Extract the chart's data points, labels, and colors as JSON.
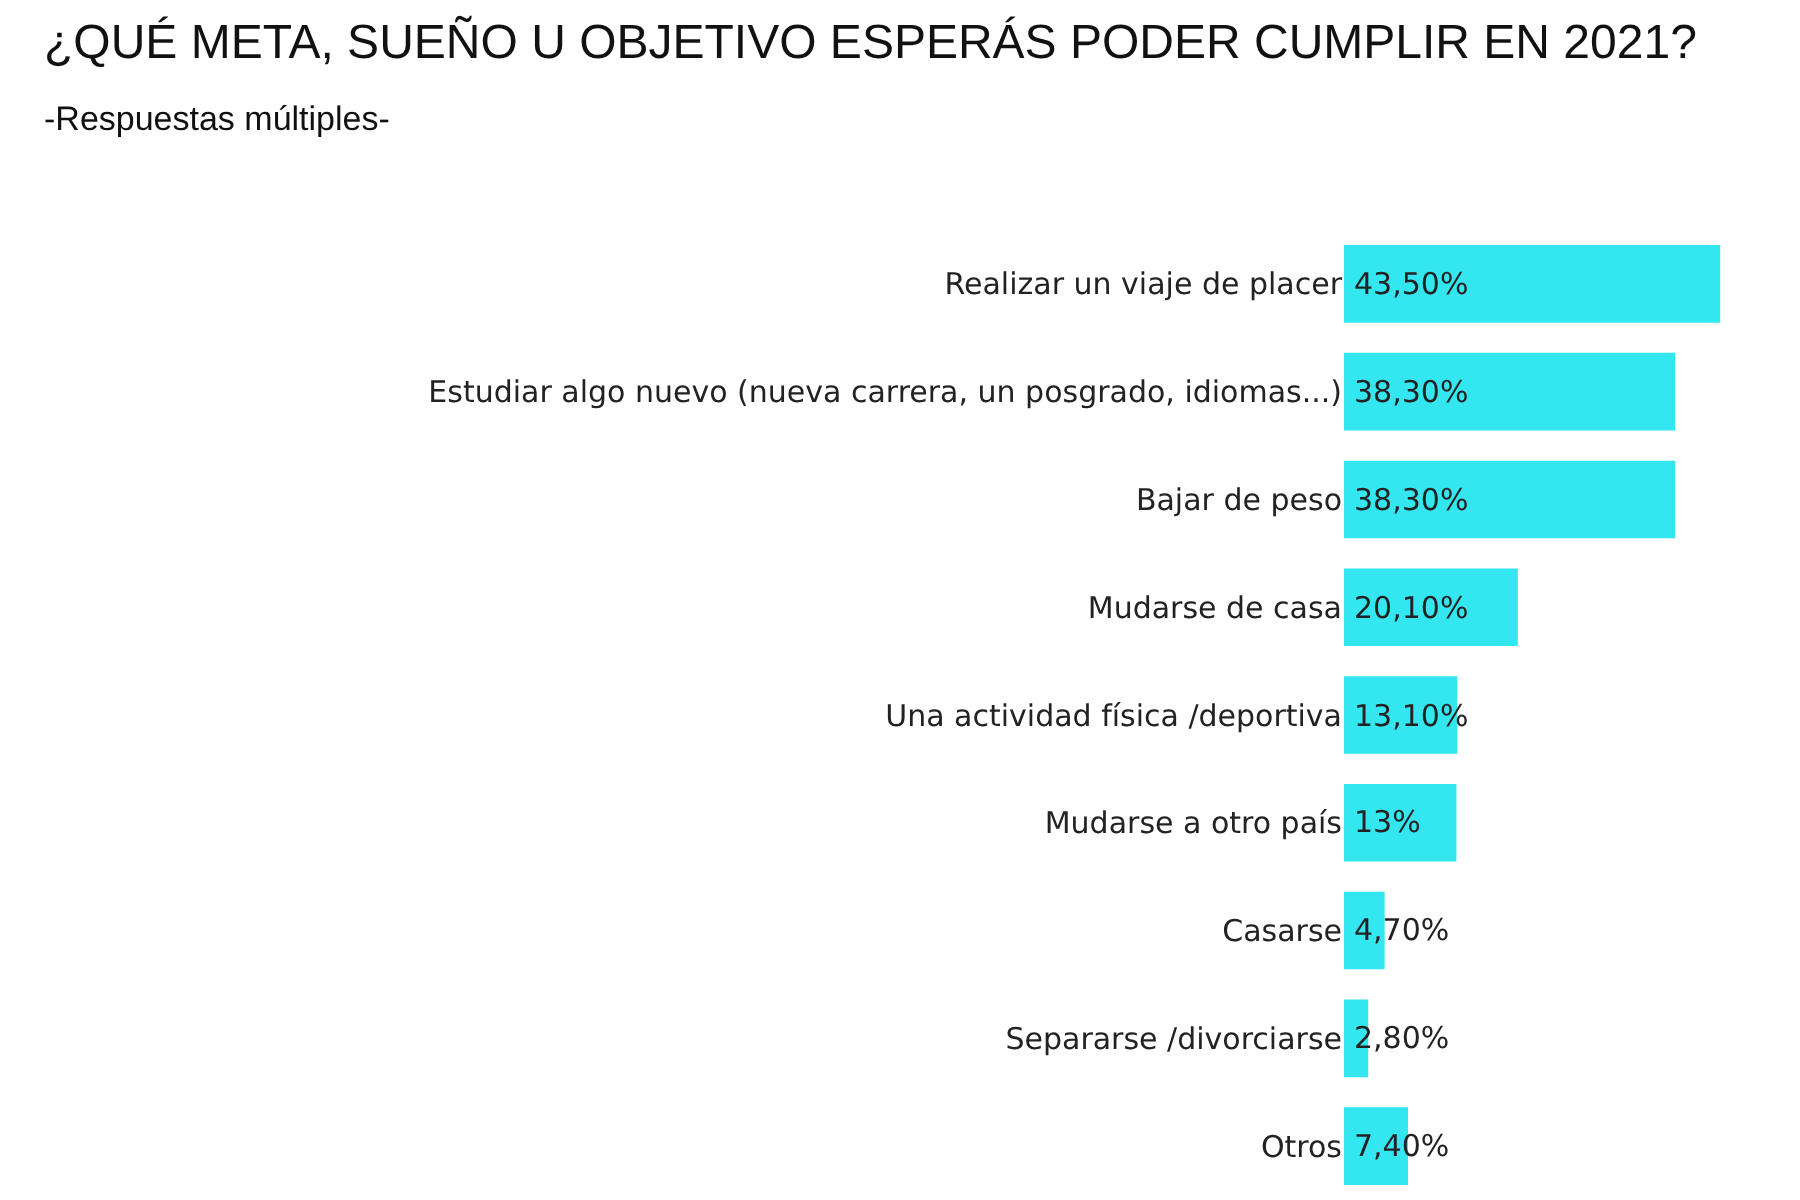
{
  "chart_data": {
    "type": "bar",
    "orientation": "horizontal",
    "title": "¿QUÉ META, SUEÑO U OBJETIVO ESPERÁS PODER CUMPLIR EN 2021?",
    "subtitle": "-Respuestas múltiples-",
    "categories": [
      "Realizar un viaje de placer",
      "Estudiar algo nuevo (nueva carrera, un posgrado, idiomas...)",
      "Bajar de peso",
      "Mudarse de casa",
      "Una actividad física /deportiva",
      "Mudarse a otro país",
      "Casarse",
      "Separarse /divorciarse",
      "Otros"
    ],
    "values": [
      43.5,
      38.3,
      38.3,
      20.1,
      13.1,
      13,
      4.7,
      2.8,
      7.4
    ],
    "value_labels": [
      "43,50%",
      "38,30%",
      "38,30%",
      "20,10%",
      "13,10%",
      "13%",
      "4,70%",
      "2,80%",
      "7,40%"
    ],
    "color": "#33e6f0",
    "legend": false
  }
}
